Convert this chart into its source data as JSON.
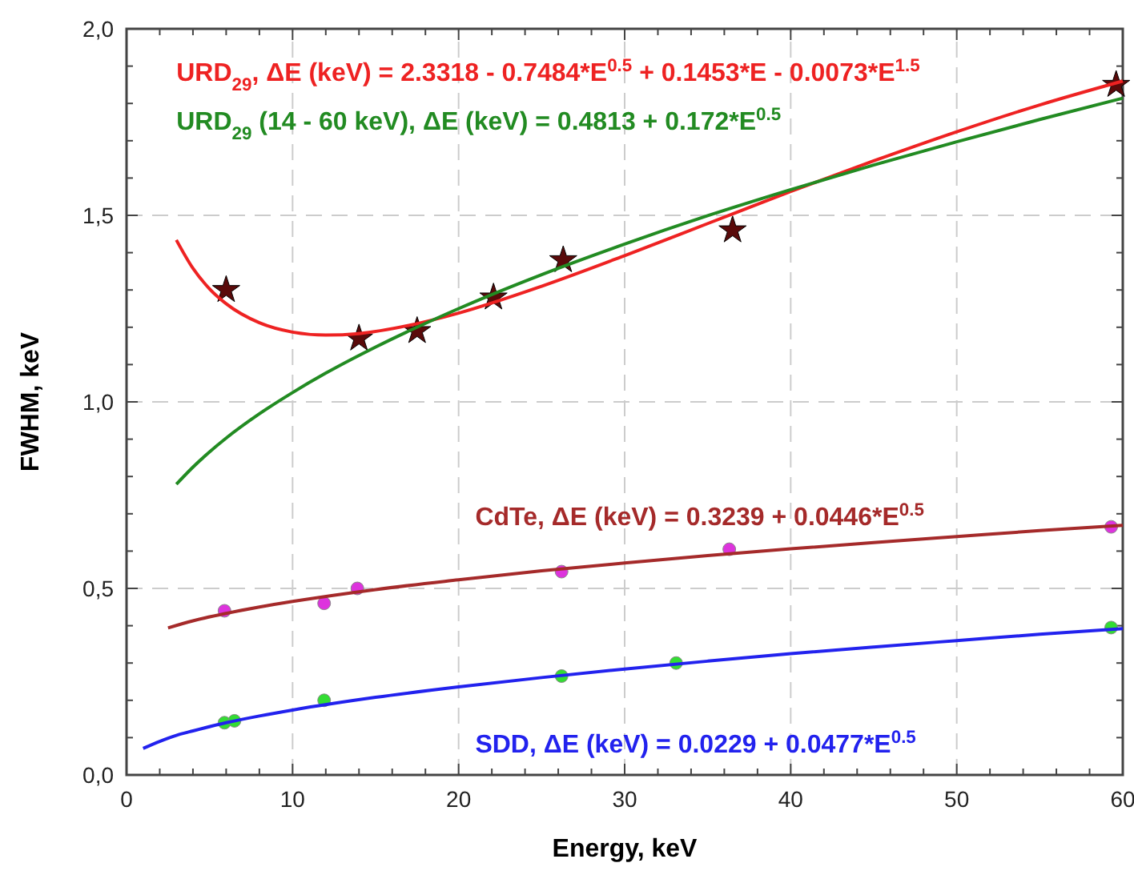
{
  "chart_data": {
    "type": "line",
    "xlabel": "Energy, keV",
    "ylabel": "FWHM, keV",
    "xlim": [
      0,
      60
    ],
    "ylim": [
      0,
      2
    ],
    "xticks": [
      0,
      {
        "value": 2,
        "label": null
      },
      {
        "value": 4,
        "label": null
      },
      {
        "value": 6,
        "label": null
      },
      {
        "value": 8,
        "label": null
      },
      10,
      {
        "value": 12,
        "label": null
      },
      {
        "value": 14,
        "label": null
      },
      {
        "value": 16,
        "label": null
      },
      {
        "value": 18,
        "label": null
      },
      20,
      {
        "value": 22,
        "label": null
      },
      {
        "value": 24,
        "label": null
      },
      {
        "value": 26,
        "label": null
      },
      {
        "value": 28,
        "label": null
      },
      30,
      {
        "value": 32,
        "label": null
      },
      {
        "value": 34,
        "label": null
      },
      {
        "value": 36,
        "label": null
      },
      {
        "value": 38,
        "label": null
      },
      40,
      {
        "value": 42,
        "label": null
      },
      {
        "value": 44,
        "label": null
      },
      {
        "value": 46,
        "label": null
      },
      {
        "value": 48,
        "label": null
      },
      50,
      {
        "value": 52,
        "label": null
      },
      {
        "value": 54,
        "label": null
      },
      {
        "value": 56,
        "label": null
      },
      {
        "value": 58,
        "label": null
      },
      60
    ],
    "yticks": [
      {
        "value": 0,
        "label": "0,0"
      },
      {
        "value": 0.1,
        "label": null
      },
      {
        "value": 0.2,
        "label": null
      },
      {
        "value": 0.3,
        "label": null
      },
      {
        "value": 0.4,
        "label": null
      },
      {
        "value": 0.5,
        "label": "0,5"
      },
      {
        "value": 0.6,
        "label": null
      },
      {
        "value": 0.7,
        "label": null
      },
      {
        "value": 0.8,
        "label": null
      },
      {
        "value": 0.9,
        "label": null
      },
      {
        "value": 1,
        "label": "1,0"
      },
      {
        "value": 1.1,
        "label": null
      },
      {
        "value": 1.2,
        "label": null
      },
      {
        "value": 1.3,
        "label": null
      },
      {
        "value": 1.4,
        "label": null
      },
      {
        "value": 1.5,
        "label": "1,5"
      },
      {
        "value": 1.6,
        "label": null
      },
      {
        "value": 1.7,
        "label": null
      },
      {
        "value": 1.8,
        "label": null
      },
      {
        "value": 1.9,
        "label": null
      },
      {
        "value": 2,
        "label": "2,0"
      }
    ],
    "grid": true,
    "series": [
      {
        "name": "URD$_{29}$, ΔE (keV) = 2.3318 - 0.7484*E$^{0.5}$ + 0.1453*E - 0.0073*E$^{1.5}$",
        "color": "#ee2222",
        "marker": "none",
        "x": [
          3,
          4,
          5,
          6,
          8,
          10,
          12,
          14,
          17,
          20,
          25,
          30,
          35,
          40,
          45,
          50,
          55,
          60
        ],
        "values": [
          1.434,
          1.358,
          1.303,
          1.263,
          1.212,
          1.187,
          1.179,
          1.183,
          1.205,
          1.238,
          1.31,
          1.392,
          1.478,
          1.564,
          1.646,
          1.724,
          1.796,
          1.86
        ]
      },
      {
        "name": "URD$_{29}$ (14 - 60 keV), ΔE (keV) = 0.4813 + 0.172*E$^{0.5}$",
        "color": "#228b22",
        "marker": "none",
        "x": [
          3,
          4,
          5,
          6,
          8,
          10,
          12,
          15,
          20,
          25,
          30,
          35,
          40,
          45,
          50,
          55,
          60
        ],
        "values": [
          0.779,
          0.825,
          0.866,
          0.903,
          0.968,
          1.025,
          1.077,
          1.147,
          1.25,
          1.341,
          1.423,
          1.499,
          1.569,
          1.635,
          1.697,
          1.757,
          1.814
        ]
      },
      {
        "type": "scatter",
        "color": "#5a0a0a",
        "marker": "star",
        "x": [
          6,
          14,
          17.5,
          22.1,
          26.3,
          36.5,
          59.6
        ],
        "values": [
          1.3,
          1.17,
          1.19,
          1.28,
          1.38,
          1.46,
          1.85
        ]
      },
      {
        "name": "CdTe, ΔE (keV) = 0.3239 + 0.0446*E$^{0.5}$",
        "color": "#a52a2a",
        "marker": "none",
        "x": [
          2.5,
          4,
          6,
          8,
          10,
          15,
          20,
          25,
          30,
          35,
          40,
          45,
          50,
          55,
          60
        ],
        "values": [
          0.394,
          0.413,
          0.433,
          0.45,
          0.465,
          0.497,
          0.523,
          0.547,
          0.568,
          0.588,
          0.606,
          0.623,
          0.639,
          0.655,
          0.669
        ]
      },
      {
        "type": "scatter",
        "color": "#dd33dd",
        "marker": "circle",
        "x": [
          5.9,
          11.9,
          13.9,
          26.2,
          36.3,
          59.3
        ],
        "values": [
          0.44,
          0.46,
          0.5,
          0.545,
          0.605,
          0.665
        ]
      },
      {
        "name": "SDD, ΔE (keV) = 0.0229 + 0.0477*E$^{0.5}$",
        "color": "#2222ee",
        "marker": "none",
        "x": [
          1,
          2,
          3,
          4,
          6,
          8,
          10,
          15,
          20,
          25,
          30,
          35,
          40,
          45,
          50,
          55,
          60
        ],
        "values": [
          0.071,
          0.09,
          0.106,
          0.118,
          0.14,
          0.158,
          0.174,
          0.208,
          0.236,
          0.261,
          0.284,
          0.305,
          0.325,
          0.343,
          0.36,
          0.377,
          0.392
        ]
      },
      {
        "type": "scatter",
        "color": "#33dd33",
        "marker": "circle",
        "x": [
          5.9,
          6.5,
          11.9,
          26.2,
          33.1,
          59.3
        ],
        "values": [
          0.14,
          0.145,
          0.2,
          0.265,
          0.3,
          0.395
        ]
      }
    ]
  }
}
